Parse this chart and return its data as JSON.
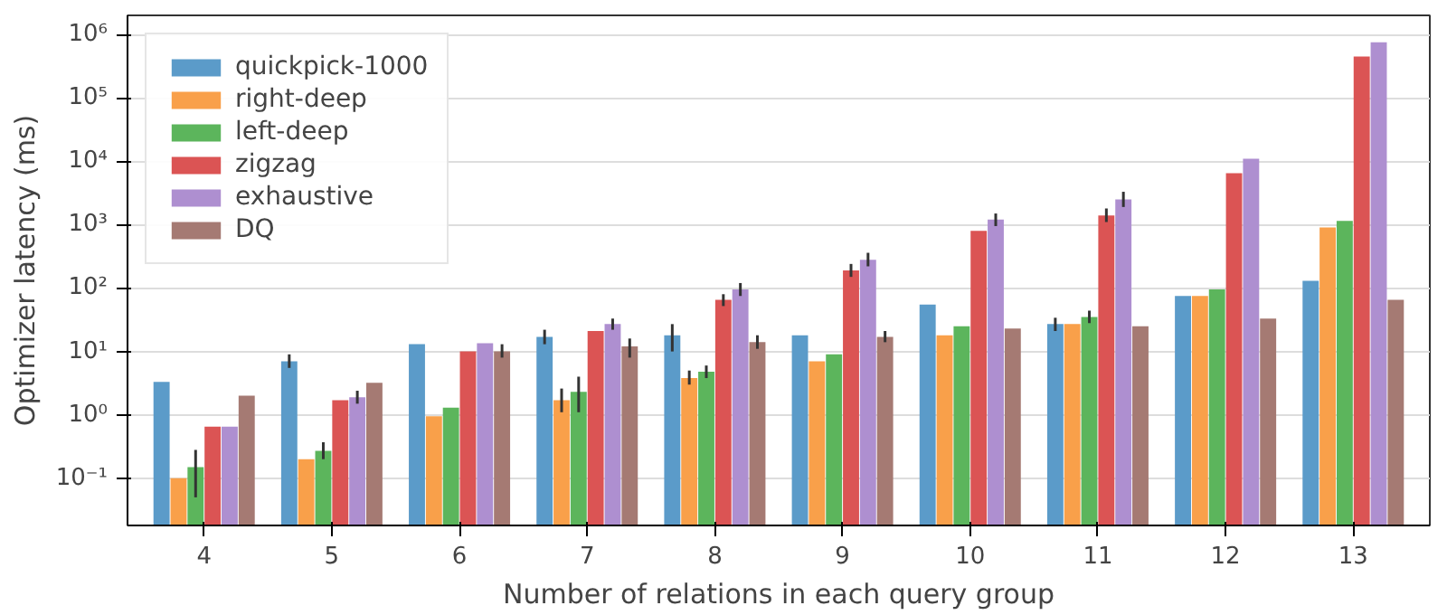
{
  "chart_data": {
    "type": "bar",
    "xlabel": "Number of relations in each query group",
    "ylabel": "Optimizer latency (ms)",
    "categories": [
      "4",
      "5",
      "6",
      "7",
      "8",
      "9",
      "10",
      "11",
      "12",
      "13"
    ],
    "log": "y",
    "ylim": [
      0.018,
      2000000
    ],
    "yticks": [
      {
        "value": 0.1,
        "label": "10⁻¹"
      },
      {
        "value": 1,
        "label": "10⁰"
      },
      {
        "value": 10,
        "label": "10¹"
      },
      {
        "value": 100,
        "label": "10²"
      },
      {
        "value": 1000,
        "label": "10³"
      },
      {
        "value": 10000,
        "label": "10⁴"
      },
      {
        "value": 100000,
        "label": "10⁵"
      },
      {
        "value": 1000000,
        "label": "10⁶"
      }
    ],
    "grid": "y",
    "legend": "top left",
    "series": [
      {
        "name": "quickpick-1000",
        "color": "#5b9bc9",
        "values": [
          3.3,
          7,
          13,
          17,
          18,
          18,
          55,
          27,
          75,
          130
        ],
        "errors": [
          null,
          [
            5.5,
            9
          ],
          null,
          [
            13,
            22
          ],
          [
            10,
            27
          ],
          null,
          null,
          [
            21,
            34
          ],
          null,
          null
        ]
      },
      {
        "name": "right-deep",
        "color": "#f9a04a",
        "values": [
          0.1,
          0.2,
          0.95,
          1.7,
          3.8,
          7,
          18,
          27,
          75,
          900
        ],
        "errors": [
          null,
          null,
          null,
          [
            1.1,
            2.6
          ],
          [
            3,
            5
          ],
          null,
          null,
          null,
          null,
          null
        ]
      },
      {
        "name": "left-deep",
        "color": "#5cb55c",
        "values": [
          0.15,
          0.27,
          1.3,
          2.3,
          4.8,
          9,
          25,
          35,
          95,
          1150
        ],
        "errors": [
          [
            0.05,
            0.28
          ],
          [
            0.2,
            0.37
          ],
          null,
          [
            1.1,
            4
          ],
          [
            3.8,
            6
          ],
          null,
          null,
          [
            28,
            44
          ],
          null,
          null
        ]
      },
      {
        "name": "zigzag",
        "color": "#db5454",
        "values": [
          0.65,
          1.7,
          10,
          21,
          65,
          190,
          800,
          1400,
          6500,
          450000
        ],
        "errors": [
          null,
          null,
          null,
          null,
          [
            52,
            80
          ],
          [
            150,
            240
          ],
          null,
          [
            1100,
            1800
          ],
          null,
          null
        ]
      },
      {
        "name": "exhaustive",
        "color": "#ae8fd0",
        "values": [
          0.65,
          1.9,
          13.5,
          27,
          95,
          280,
          1200,
          2500,
          11000,
          750000
        ],
        "errors": [
          null,
          [
            1.5,
            2.4
          ],
          null,
          [
            22,
            33
          ],
          [
            75,
            120
          ],
          [
            220,
            360
          ],
          [
            950,
            1500
          ],
          [
            1900,
            3300
          ],
          null,
          null
        ]
      },
      {
        "name": "DQ",
        "color": "#a57a73",
        "values": [
          2.0,
          3.2,
          10,
          12,
          14,
          17,
          23,
          25,
          33,
          65
        ],
        "errors": [
          null,
          null,
          [
            8,
            13
          ],
          [
            8,
            16
          ],
          [
            11,
            18
          ],
          [
            14,
            21
          ],
          null,
          null,
          null,
          null
        ]
      }
    ]
  }
}
